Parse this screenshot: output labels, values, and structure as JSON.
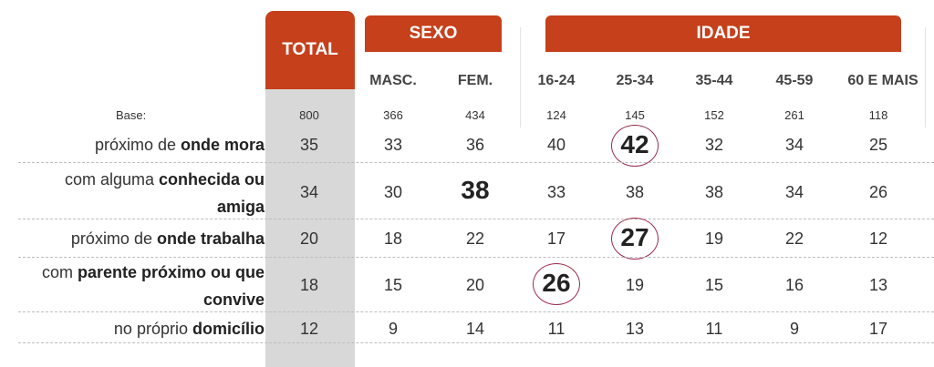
{
  "header": {
    "total_label": "TOTAL",
    "sexo_label": "SEXO",
    "idade_label": "IDADE",
    "accent_color": "#c5401b"
  },
  "columns": [
    "MASC.",
    "FEM.",
    "16-24",
    "25-34",
    "35-44",
    "45-59",
    "60 E MAIS"
  ],
  "base": {
    "label": "Base:",
    "values": [
      "800",
      "366",
      "434",
      "124",
      "145",
      "152",
      "261",
      "118"
    ]
  },
  "rows": [
    {
      "pre": "próximo de ",
      "bold": "onde mora",
      "values": [
        "35",
        "33",
        "36",
        "40",
        "42",
        "32",
        "34",
        "25"
      ]
    },
    {
      "pre": "com alguma ",
      "bold": "conhecida ou",
      "bold2": "amiga",
      "values": [
        "34",
        "30",
        "38",
        "33",
        "38",
        "38",
        "34",
        "26"
      ]
    },
    {
      "pre": "próximo de ",
      "bold": "onde trabalha",
      "values": [
        "20",
        "18",
        "22",
        "17",
        "27",
        "19",
        "22",
        "12"
      ]
    },
    {
      "pre": "com ",
      "bold": "parente próximo ou que",
      "bold2": "convive",
      "values": [
        "18",
        "15",
        "20",
        "26",
        "19",
        "15",
        "16",
        "13"
      ]
    },
    {
      "pre": "no próprio ",
      "bold": "domicílio",
      "values": [
        "12",
        "9",
        "14",
        "11",
        "13",
        "11",
        "9",
        "17"
      ]
    }
  ],
  "highlights_color": "#9b2a4a"
}
